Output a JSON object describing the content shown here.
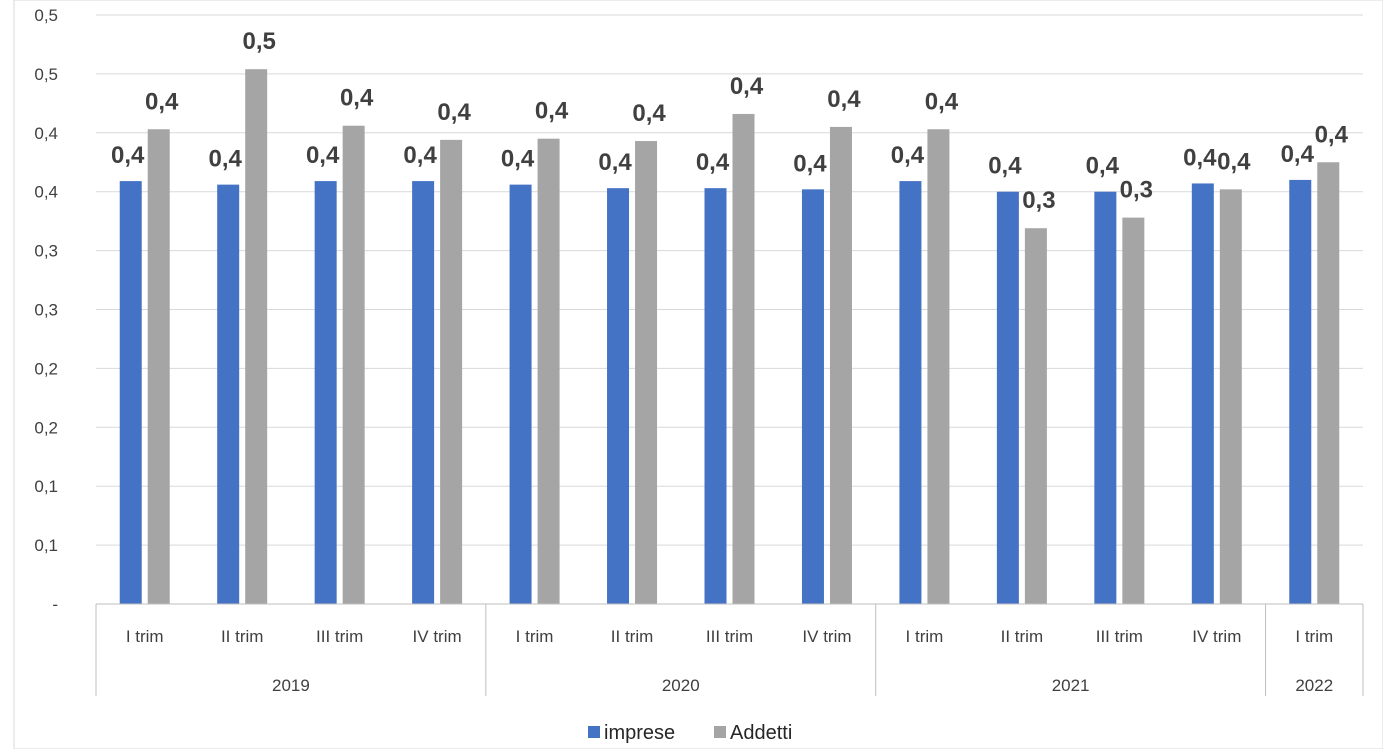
{
  "colors": {
    "imprese": "#4472C4",
    "addetti": "#A5A5A5",
    "grid": "#D9D9D9",
    "axis": "#BFBFBF",
    "text": "#404040"
  },
  "chart_data": {
    "type": "bar",
    "title": "",
    "xlabel": "",
    "ylabel": "",
    "ylim": [
      0,
      0.5
    ],
    "ytick_values": [
      0,
      0.05,
      0.1,
      0.15,
      0.2,
      0.25,
      0.3,
      0.35,
      0.4,
      0.45,
      0.5
    ],
    "ytick_labels": [
      "-",
      "0,1",
      "0,1",
      "0,2",
      "0,2",
      "0,3",
      "0,3",
      "0,4",
      "0,4",
      "0,5",
      "0,5"
    ],
    "grid": true,
    "legend": "bottom",
    "categories": [
      "I trim",
      "II trim",
      "III trim",
      "IV trim",
      "I trim",
      "II trim",
      "III trim",
      "IV trim",
      "I trim",
      "II trim",
      "III trim",
      "IV trim",
      "I trim"
    ],
    "groups": [
      {
        "label": "2019",
        "count": 4
      },
      {
        "label": "2020",
        "count": 4
      },
      {
        "label": "2021",
        "count": 4
      },
      {
        "label": "2022",
        "count": 1
      }
    ],
    "series": [
      {
        "name": "imprese",
        "values": [
          0.359,
          0.356,
          0.359,
          0.359,
          0.356,
          0.353,
          0.353,
          0.352,
          0.359,
          0.35,
          0.35,
          0.357,
          0.36
        ],
        "labels": [
          "0,4",
          "0,4",
          "0,4",
          "0,4",
          "0,4",
          "0,4",
          "0,4",
          "0,4",
          "0,4",
          "0,4",
          "0,4",
          "0,4",
          "0,4"
        ]
      },
      {
        "name": "Addetti",
        "values": [
          0.403,
          0.454,
          0.406,
          0.394,
          0.395,
          0.393,
          0.416,
          0.405,
          0.403,
          0.319,
          0.328,
          0.352,
          0.375
        ],
        "labels": [
          "0,4",
          "0,5",
          "0,4",
          "0,4",
          "0,4",
          "0,4",
          "0,4",
          "0,4",
          "0,4",
          "0,3",
          "0,3",
          "0,4",
          "0,4"
        ]
      }
    ]
  }
}
